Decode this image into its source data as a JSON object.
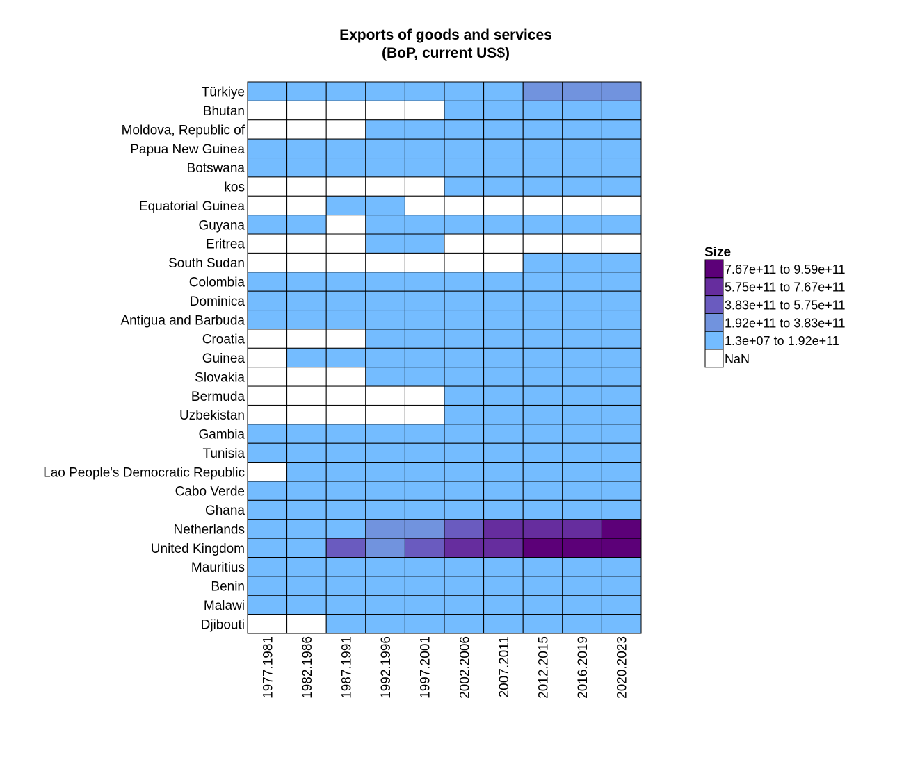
{
  "chart_data": {
    "type": "heatmap",
    "title": [
      "Exports of goods and services",
      "(BoP, current US$)"
    ],
    "columns": [
      "1977.1981",
      "1982.1986",
      "1987.1991",
      "1992.1996",
      "1997.2001",
      "2002.2006",
      "2007.2011",
      "2012.2015",
      "2016.2019",
      "2020.2023"
    ],
    "rows": [
      "Türkiye",
      "Bhutan",
      "Moldova, Republic of",
      "Papua New Guinea",
      "Botswana",
      "kos",
      "Equatorial Guinea",
      "Guyana",
      "Eritrea",
      "South Sudan",
      "Colombia",
      "Dominica",
      "Antigua and Barbuda",
      "Croatia",
      "Guinea",
      "Slovakia",
      "Bermuda",
      "Uzbekistan",
      "Gambia",
      "Tunisia",
      "Lao People's Democratic Republic",
      "Cabo Verde",
      "Ghana",
      "Netherlands",
      "United Kingdom",
      "Mauritius",
      "Benin",
      "Malawi",
      "Djibouti"
    ],
    "bins": [
      {
        "label": "7.67e+11 to 9.59e+11",
        "color": "#5c0078"
      },
      {
        "label": "5.75e+11 to 7.67e+11",
        "color": "#662d9e"
      },
      {
        "label": "3.83e+11 to 5.75e+11",
        "color": "#6a5bbf"
      },
      {
        "label": "1.92e+11 to 3.83e+11",
        "color": "#7193de"
      },
      {
        "label": "1.3e+07 to 1.92e+11",
        "color": "#74bcff"
      },
      {
        "label": "NaN",
        "color": "#ffffff"
      }
    ],
    "legend_title": "Size",
    "legend_position": "right",
    "cells": [
      [
        4,
        4,
        4,
        4,
        4,
        4,
        4,
        3,
        3,
        3
      ],
      [
        5,
        5,
        5,
        5,
        5,
        4,
        4,
        4,
        4,
        4
      ],
      [
        5,
        5,
        5,
        4,
        4,
        4,
        4,
        4,
        4,
        4
      ],
      [
        4,
        4,
        4,
        4,
        4,
        4,
        4,
        4,
        4,
        4
      ],
      [
        4,
        4,
        4,
        4,
        4,
        4,
        4,
        4,
        4,
        4
      ],
      [
        5,
        5,
        5,
        5,
        5,
        4,
        4,
        4,
        4,
        4
      ],
      [
        5,
        5,
        4,
        4,
        5,
        5,
        5,
        5,
        5,
        5
      ],
      [
        4,
        4,
        5,
        4,
        4,
        4,
        4,
        4,
        4,
        4
      ],
      [
        5,
        5,
        5,
        4,
        4,
        5,
        5,
        5,
        5,
        5
      ],
      [
        5,
        5,
        5,
        5,
        5,
        5,
        5,
        4,
        4,
        4
      ],
      [
        4,
        4,
        4,
        4,
        4,
        4,
        4,
        4,
        4,
        4
      ],
      [
        4,
        4,
        4,
        4,
        4,
        4,
        4,
        4,
        4,
        4
      ],
      [
        4,
        4,
        4,
        4,
        4,
        4,
        4,
        4,
        4,
        4
      ],
      [
        5,
        5,
        5,
        4,
        4,
        4,
        4,
        4,
        4,
        4
      ],
      [
        5,
        4,
        4,
        4,
        4,
        4,
        4,
        4,
        4,
        4
      ],
      [
        5,
        5,
        5,
        4,
        4,
        4,
        4,
        4,
        4,
        4
      ],
      [
        5,
        5,
        5,
        5,
        5,
        4,
        4,
        4,
        4,
        4
      ],
      [
        5,
        5,
        5,
        5,
        5,
        4,
        4,
        4,
        4,
        4
      ],
      [
        4,
        4,
        4,
        4,
        4,
        4,
        4,
        4,
        4,
        4
      ],
      [
        4,
        4,
        4,
        4,
        4,
        4,
        4,
        4,
        4,
        4
      ],
      [
        5,
        4,
        4,
        4,
        4,
        4,
        4,
        4,
        4,
        4
      ],
      [
        4,
        4,
        4,
        4,
        4,
        4,
        4,
        4,
        4,
        4
      ],
      [
        4,
        4,
        4,
        4,
        4,
        4,
        4,
        4,
        4,
        4
      ],
      [
        4,
        4,
        4,
        3,
        3,
        2,
        1,
        1,
        1,
        0
      ],
      [
        4,
        4,
        2,
        3,
        2,
        1,
        1,
        0,
        0,
        0
      ],
      [
        4,
        4,
        4,
        4,
        4,
        4,
        4,
        4,
        4,
        4
      ],
      [
        4,
        4,
        4,
        4,
        4,
        4,
        4,
        4,
        4,
        4
      ],
      [
        4,
        4,
        4,
        4,
        4,
        4,
        4,
        4,
        4,
        4
      ],
      [
        5,
        5,
        4,
        4,
        4,
        4,
        4,
        4,
        4,
        4
      ]
    ]
  }
}
